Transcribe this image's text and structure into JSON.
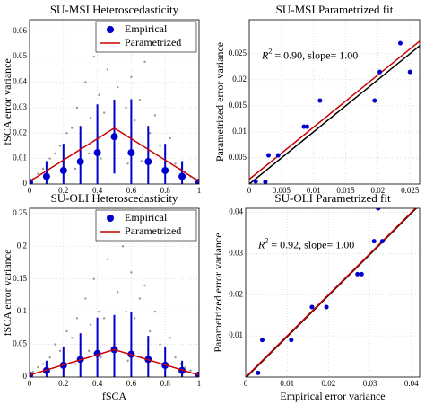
{
  "chart_data": [
    {
      "type": "scatter",
      "title": "SU-MSI Heteroscedasticity",
      "ylabel": "fSCA error variance",
      "xlim": [
        0,
        1
      ],
      "ylim": [
        0,
        0.0645
      ],
      "xticks": [
        0,
        0.2,
        0.4,
        0.6,
        0.8,
        1
      ],
      "yticks": [
        0,
        0.01,
        0.02,
        0.03,
        0.04,
        0.05,
        0.06
      ],
      "grid": true,
      "legend": "upper right",
      "series": [
        {
          "color": "#999999",
          "style": "points",
          "size": 1.2,
          "x": [
            0.02,
            0.05,
            0.08,
            0.12,
            0.15,
            0.18,
            0.22,
            0.25,
            0.28,
            0.3,
            0.33,
            0.36,
            0.38,
            0.41,
            0.44,
            0.46,
            0.49,
            0.52,
            0.55,
            0.57,
            0.6,
            0.62,
            0.65,
            0.68,
            0.71,
            0.74,
            0.77,
            0.8,
            0.83,
            0.86,
            0.89,
            0.92,
            0.95,
            0.98,
            0.42,
            0.58,
            0.35,
            0.66,
            0.27,
            0.5
          ],
          "values": [
            0.002,
            0.004,
            0.006,
            0.01,
            0.012,
            0.015,
            0.02,
            0.022,
            0.03,
            0.018,
            0.04,
            0.026,
            0.05,
            0.035,
            0.028,
            0.045,
            0.055,
            0.038,
            0.06,
            0.03,
            0.042,
            0.025,
            0.033,
            0.048,
            0.02,
            0.027,
            0.015,
            0.012,
            0.018,
            0.008,
            0.006,
            0.005,
            0.003,
            0.002,
            0.01,
            0.008,
            0.012,
            0.009,
            0.006,
            0.014
          ]
        },
        {
          "name": "Empirical",
          "color": "#0000cc",
          "style": "points",
          "size": 4,
          "x": [
            0,
            0.1,
            0.2,
            0.3,
            0.4,
            0.5,
            0.6,
            0.7,
            0.8,
            0.9,
            1
          ],
          "values": [
            0.0007,
            0.003,
            0.0053,
            0.0088,
            0.0123,
            0.0186,
            0.0123,
            0.0088,
            0.0053,
            0.003,
            0.0007
          ],
          "errors": [
            0.001,
            0.006,
            0.0105,
            0.014,
            0.019,
            0.0145,
            0.021,
            0.014,
            0.0105,
            0.006,
            0.001
          ]
        },
        {
          "name": "Parametrized",
          "color": "#cc0000",
          "style": "line",
          "x": [
            0,
            0.5,
            1
          ],
          "values": [
            0.001,
            0.022,
            0.001
          ]
        }
      ]
    },
    {
      "type": "scatter",
      "title": "SU-MSI Parametrized fit",
      "ylabel": "Parametrized error variance",
      "xlim": [
        0,
        0.0265
      ],
      "ylim": [
        0,
        0.0315
      ],
      "xticks": [
        0,
        0.005,
        0.01,
        0.015,
        0.02,
        0.025
      ],
      "yticks": [
        0.005,
        0.01,
        0.015,
        0.02,
        0.025
      ],
      "grid": true,
      "annotation": {
        "symbol": "R",
        "power": "2",
        "text": " = 0.90, slope= 1.00"
      },
      "series": [
        {
          "color": "#000000",
          "style": "line",
          "x": [
            0,
            0.0265
          ],
          "values": [
            0,
            0.0265
          ]
        },
        {
          "color": "#cc0000",
          "style": "line",
          "x": [
            0,
            0.0265
          ],
          "values": [
            0.0009,
            0.0274
          ]
        },
        {
          "color": "#0000cc",
          "style": "points",
          "size": 2.5,
          "x": [
            0.001,
            0.0025,
            0.003,
            0.0045,
            0.0085,
            0.009,
            0.011,
            0.0195,
            0.0203,
            0.0235,
            0.025
          ],
          "values": [
            0.0005,
            0.0004,
            0.0055,
            0.0055,
            0.011,
            0.011,
            0.016,
            0.016,
            0.0215,
            0.027,
            0.0215
          ]
        }
      ]
    },
    {
      "type": "scatter",
      "title": "SU-OLI Heteroscedasticity",
      "xlabel": "fSCA",
      "ylabel": "fSCA error variance",
      "xlim": [
        0,
        1
      ],
      "ylim": [
        0,
        0.258
      ],
      "xticks": [
        0,
        0.2,
        0.4,
        0.6,
        0.8,
        1
      ],
      "yticks": [
        0,
        0.05,
        0.1,
        0.15,
        0.2,
        0.25
      ],
      "grid": true,
      "legend": "upper right",
      "series": [
        {
          "color": "#999999",
          "style": "points",
          "size": 1.2,
          "x": [
            0.02,
            0.05,
            0.08,
            0.12,
            0.15,
            0.18,
            0.22,
            0.25,
            0.28,
            0.3,
            0.33,
            0.36,
            0.38,
            0.41,
            0.44,
            0.46,
            0.49,
            0.52,
            0.55,
            0.57,
            0.6,
            0.62,
            0.65,
            0.68,
            0.71,
            0.74,
            0.77,
            0.8,
            0.83,
            0.86,
            0.89,
            0.92,
            0.95,
            0.98,
            0.42,
            0.58,
            0.35,
            0.66,
            0.27,
            0.5
          ],
          "values": [
            0.008,
            0.015,
            0.02,
            0.03,
            0.05,
            0.04,
            0.07,
            0.06,
            0.09,
            0.05,
            0.12,
            0.08,
            0.15,
            0.1,
            0.09,
            0.18,
            0.24,
            0.13,
            0.2,
            0.1,
            0.16,
            0.09,
            0.12,
            0.14,
            0.07,
            0.1,
            0.05,
            0.04,
            0.06,
            0.03,
            0.02,
            0.015,
            0.01,
            0.006,
            0.03,
            0.025,
            0.04,
            0.03,
            0.02,
            0.05
          ]
        },
        {
          "name": "Empirical",
          "color": "#0000cc",
          "style": "points",
          "size": 4,
          "x": [
            0,
            0.1,
            0.2,
            0.3,
            0.4,
            0.5,
            0.6,
            0.7,
            0.8,
            0.9,
            1
          ],
          "values": [
            0.003,
            0.01,
            0.018,
            0.027,
            0.036,
            0.042,
            0.035,
            0.027,
            0.018,
            0.01,
            0.003
          ],
          "errors": [
            0.003,
            0.015,
            0.028,
            0.04,
            0.055,
            0.053,
            0.065,
            0.036,
            0.028,
            0.015,
            0.003
          ]
        },
        {
          "name": "Parametrized",
          "color": "#cc0000",
          "style": "line",
          "x": [
            0,
            0.5,
            1
          ],
          "values": [
            0.003,
            0.042,
            0.003
          ]
        }
      ]
    },
    {
      "type": "scatter",
      "title": "SU-OLI Parametrized fit",
      "xlabel": "Empirical error variance",
      "ylabel": "Parametrized error variance",
      "xlim": [
        0,
        0.042
      ],
      "ylim": [
        0,
        0.041
      ],
      "xticks": [
        0,
        0.01,
        0.02,
        0.03,
        0.04
      ],
      "yticks": [
        0.01,
        0.02,
        0.03,
        0.04
      ],
      "grid": true,
      "annotation": {
        "symbol": "R",
        "power": "2",
        "text": " = 0.92, slope= 1.00"
      },
      "series": [
        {
          "color": "#000000",
          "style": "line",
          "x": [
            0,
            0.042
          ],
          "values": [
            -0.0002,
            0.0418
          ]
        },
        {
          "color": "#cc0000",
          "style": "line",
          "x": [
            0,
            0.042
          ],
          "values": [
            0,
            0.042
          ]
        },
        {
          "color": "#0000cc",
          "style": "points",
          "size": 2.5,
          "x": [
            0.003,
            0.004,
            0.011,
            0.016,
            0.0195,
            0.027,
            0.028,
            0.031,
            0.032,
            0.033
          ],
          "values": [
            0.001,
            0.009,
            0.009,
            0.017,
            0.017,
            0.025,
            0.025,
            0.033,
            0.041,
            0.033
          ]
        }
      ]
    }
  ]
}
